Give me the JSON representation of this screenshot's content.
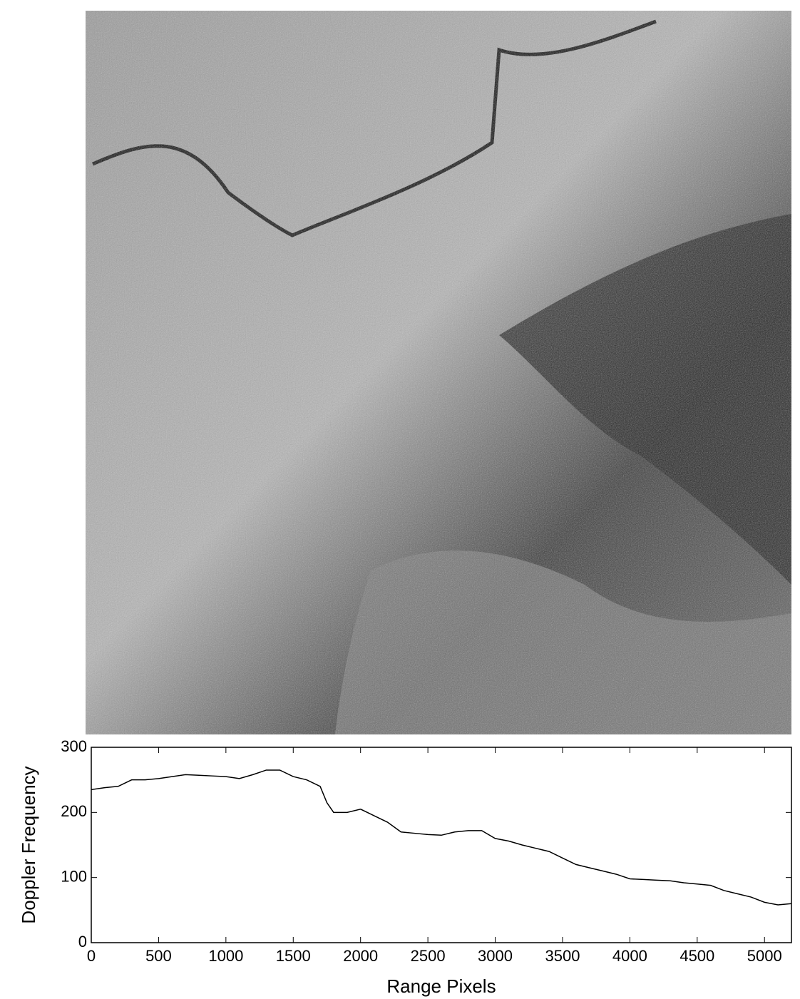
{
  "chart_data": {
    "type": "line",
    "xlabel": "Range Pixels",
    "ylabel": "Doppler Frequency",
    "x": [
      0,
      100,
      200,
      300,
      400,
      500,
      600,
      700,
      800,
      900,
      1000,
      1100,
      1200,
      1300,
      1400,
      1500,
      1600,
      1700,
      1750,
      1800,
      1900,
      2000,
      2100,
      2200,
      2300,
      2400,
      2500,
      2600,
      2700,
      2800,
      2900,
      3000,
      3100,
      3200,
      3300,
      3400,
      3500,
      3600,
      3700,
      3800,
      3900,
      4000,
      4100,
      4200,
      4300,
      4400,
      4500,
      4600,
      4700,
      4800,
      4900,
      5000,
      5100,
      5200
    ],
    "values": [
      235,
      238,
      240,
      250,
      250,
      252,
      255,
      258,
      257,
      256,
      255,
      252,
      258,
      265,
      265,
      255,
      250,
      240,
      215,
      200,
      200,
      205,
      195,
      185,
      170,
      168,
      166,
      165,
      170,
      172,
      172,
      160,
      156,
      150,
      145,
      140,
      130,
      120,
      115,
      110,
      105,
      98,
      97,
      96,
      95,
      92,
      90,
      88,
      80,
      75,
      70,
      62,
      58,
      60
    ],
    "color": "#000000",
    "xlim": [
      0,
      5200
    ],
    "ylim": [
      0,
      300
    ],
    "xticks": [
      0,
      500,
      1000,
      1500,
      2000,
      2500,
      3000,
      3500,
      4000,
      4500,
      5000
    ],
    "yticks": [
      0,
      100,
      200,
      300
    ],
    "grid": false
  }
}
